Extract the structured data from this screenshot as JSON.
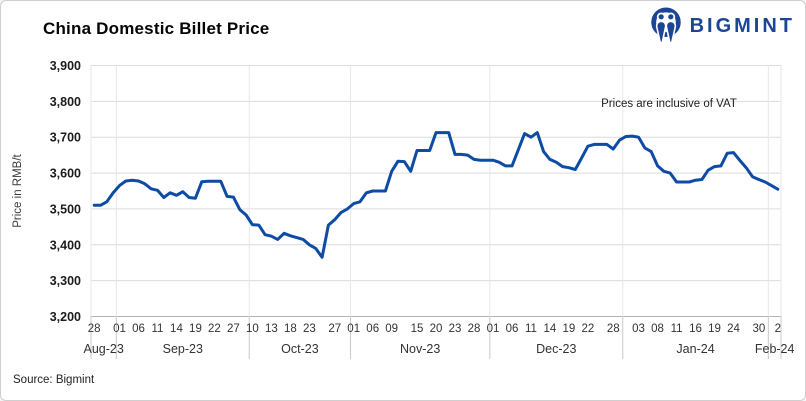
{
  "header": {
    "title": "China Domestic Billet Price",
    "brand": "BIGMINT"
  },
  "chart": {
    "y_axis_title": "Price in RMB/t",
    "annotation": "Prices are inclusive of VAT"
  },
  "footer": {
    "source": "Source: Bigmint"
  },
  "colors": {
    "line": "#0d4ba4",
    "brand_blue": "#1b4696",
    "gridline": "#dcdcdc",
    "axis_line": "#b3b3b3",
    "separator": "#c9c9c9",
    "tick_text": "#1c1c1c",
    "label_text": "#333333"
  },
  "chart_data": {
    "type": "line",
    "title": "China Domestic Billet Price",
    "xlabel": "",
    "ylabel": "Price in RMB/t",
    "unit": "RMB/t",
    "ylim": [
      3200,
      3900
    ],
    "y_tick_step": 100,
    "grid": "horizontal",
    "legend": "none",
    "series": [
      {
        "name": "China domestic billet price (RMB/t)",
        "dates": [
          "Aug-28",
          "Aug-29",
          "Aug-30",
          "Aug-31",
          "Sep-01",
          "Sep-04",
          "Sep-05",
          "Sep-06",
          "Sep-07",
          "Sep-08",
          "Sep-11",
          "Sep-12",
          "Sep-13",
          "Sep-14",
          "Sep-15",
          "Sep-18",
          "Sep-19",
          "Sep-20",
          "Sep-21",
          "Sep-22",
          "Sep-25",
          "Sep-26",
          "Sep-27",
          "Sep-28",
          "Sep-29",
          "Oct-10",
          "Oct-11",
          "Oct-12",
          "Oct-13",
          "Oct-16",
          "Oct-17",
          "Oct-18",
          "Oct-19",
          "Oct-20",
          "Oct-23",
          "Oct-24",
          "Oct-25",
          "Oct-26",
          "Oct-27",
          "Oct-30",
          "Oct-31",
          "Nov-01",
          "Nov-02",
          "Nov-03",
          "Nov-06",
          "Nov-07",
          "Nov-08",
          "Nov-09",
          "Nov-10",
          "Nov-13",
          "Nov-14",
          "Nov-15",
          "Nov-16",
          "Nov-17",
          "Nov-20",
          "Nov-21",
          "Nov-22",
          "Nov-23",
          "Nov-24",
          "Nov-27",
          "Nov-28",
          "Nov-29",
          "Nov-30",
          "Dec-01",
          "Dec-04",
          "Dec-05",
          "Dec-06",
          "Dec-07",
          "Dec-08",
          "Dec-11",
          "Dec-12",
          "Dec-13",
          "Dec-14",
          "Dec-15",
          "Dec-18",
          "Dec-19",
          "Dec-20",
          "Dec-21",
          "Dec-22",
          "Dec-25",
          "Dec-26",
          "Dec-27",
          "Dec-28",
          "Dec-29",
          "Jan-01",
          "Jan-02",
          "Jan-03",
          "Jan-04",
          "Jan-05",
          "Jan-08",
          "Jan-09",
          "Jan-10",
          "Jan-11",
          "Jan-12",
          "Jan-15",
          "Jan-16",
          "Jan-17",
          "Jan-18",
          "Jan-19",
          "Jan-22",
          "Jan-23",
          "Jan-24",
          "Jan-25",
          "Jan-26",
          "Jan-29",
          "Jan-30",
          "Jan-31",
          "Feb-01",
          "Feb-02"
        ],
        "values": [
          3510,
          3510,
          3520,
          3545,
          3565,
          3578,
          3580,
          3578,
          3570,
          3556,
          3552,
          3532,
          3545,
          3538,
          3548,
          3532,
          3530,
          3576,
          3577,
          3577,
          3577,
          3535,
          3533,
          3498,
          3483,
          3456,
          3455,
          3428,
          3424,
          3415,
          3432,
          3425,
          3420,
          3415,
          3400,
          3390,
          3365,
          3455,
          3470,
          3490,
          3500,
          3515,
          3520,
          3545,
          3550,
          3550,
          3550,
          3605,
          3633,
          3632,
          3605,
          3663,
          3663,
          3663,
          3713,
          3713,
          3713,
          3652,
          3652,
          3650,
          3638,
          3636,
          3636,
          3636,
          3630,
          3620,
          3620,
          3665,
          3710,
          3700,
          3713,
          3660,
          3638,
          3630,
          3618,
          3615,
          3610,
          3642,
          3675,
          3680,
          3680,
          3680,
          3667,
          3692,
          3702,
          3703,
          3700,
          3670,
          3660,
          3620,
          3605,
          3600,
          3575,
          3575,
          3575,
          3580,
          3582,
          3608,
          3618,
          3620,
          3655,
          3657,
          3635,
          3615,
          3590,
          3582,
          3575,
          3565,
          3555
        ]
      }
    ],
    "x_ticks": [
      {
        "index": 0,
        "label": "28"
      },
      {
        "index": 4,
        "label": "01"
      },
      {
        "index": 7,
        "label": "06"
      },
      {
        "index": 10,
        "label": "11"
      },
      {
        "index": 13,
        "label": "14"
      },
      {
        "index": 16,
        "label": "19"
      },
      {
        "index": 19,
        "label": "22"
      },
      {
        "index": 22,
        "label": "27"
      },
      {
        "index": 25,
        "label": "10"
      },
      {
        "index": 28,
        "label": "13"
      },
      {
        "index": 31,
        "label": "18"
      },
      {
        "index": 34,
        "label": "23"
      },
      {
        "index": 38,
        "label": "27"
      },
      {
        "index": 41,
        "label": "01"
      },
      {
        "index": 44,
        "label": "06"
      },
      {
        "index": 47,
        "label": "09"
      },
      {
        "index": 51,
        "label": "15"
      },
      {
        "index": 54,
        "label": "20"
      },
      {
        "index": 57,
        "label": "23"
      },
      {
        "index": 60,
        "label": "28"
      },
      {
        "index": 63,
        "label": "01"
      },
      {
        "index": 66,
        "label": "06"
      },
      {
        "index": 69,
        "label": "11"
      },
      {
        "index": 72,
        "label": "14"
      },
      {
        "index": 75,
        "label": "19"
      },
      {
        "index": 78,
        "label": "22"
      },
      {
        "index": 82,
        "label": "28"
      },
      {
        "index": 86,
        "label": "03"
      },
      {
        "index": 89,
        "label": "08"
      },
      {
        "index": 92,
        "label": "11"
      },
      {
        "index": 95,
        "label": "16"
      },
      {
        "index": 98,
        "label": "19"
      },
      {
        "index": 101,
        "label": "24"
      },
      {
        "index": 105,
        "label": "30"
      },
      {
        "index": 108,
        "label": "2"
      }
    ],
    "month_groups": [
      {
        "label": "Aug-23",
        "start": 0,
        "count": 4
      },
      {
        "label": "Sep-23",
        "start": 4,
        "count": 21
      },
      {
        "label": "Oct-23",
        "start": 25,
        "count": 16
      },
      {
        "label": "Nov-23",
        "start": 41,
        "count": 22
      },
      {
        "label": "Dec-23",
        "start": 63,
        "count": 21
      },
      {
        "label": "Jan-24",
        "start": 84,
        "count": 23
      },
      {
        "label": "Feb-24",
        "start": 107,
        "count": 2
      }
    ]
  }
}
